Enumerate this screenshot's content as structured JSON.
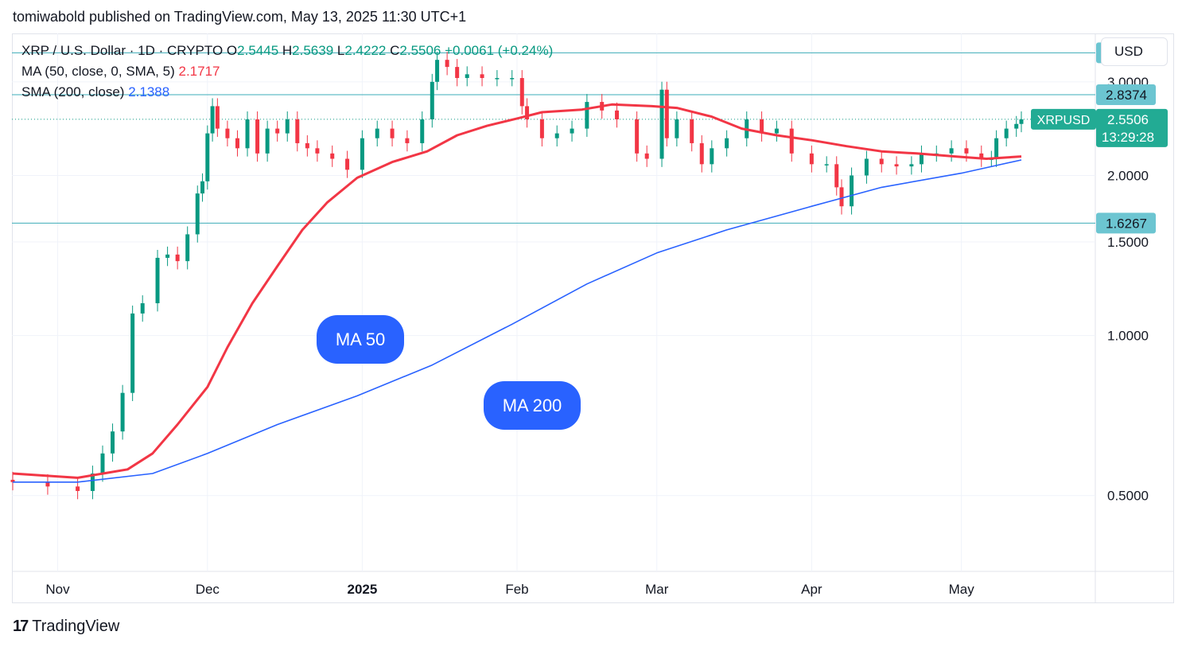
{
  "header": {
    "published": "tomiwabold published on TradingView.com, May 13, 2025 11:30 UTC+1"
  },
  "legend": {
    "symbol": "XRP / U.S. Dollar · 1D · CRYPTO",
    "open_label": "O",
    "open": "2.5445",
    "high_label": "H",
    "high": "2.5639",
    "low_label": "L",
    "low": "2.4222",
    "close_label": "C",
    "close": "2.5506",
    "change": "+0.0061 (+0.24%)",
    "ma50_label": "MA (50, close, 0, SMA, 5)",
    "ma50_value": "2.1717",
    "sma200_label": "SMA (200, close)",
    "sma200_value": "2.1388"
  },
  "currency_button": "USD",
  "annotations": {
    "ma50": "MA 50",
    "ma200": "MA 200"
  },
  "footer": {
    "logo": "17",
    "brand": "TradingView"
  },
  "colors": {
    "up": "#089981",
    "down": "#f23645",
    "ma50": "#f23645",
    "ma200": "#2962ff",
    "level": "#3dadb8"
  },
  "chart_data": {
    "type": "candlestick",
    "symbol": "XRPUSD",
    "interval": "1D",
    "y_scale": "log",
    "ylim": [
      0.36,
      3.7
    ],
    "y_ticks": [
      {
        "value": 0.5,
        "label": "0.5000"
      },
      {
        "value": 1.0,
        "label": "1.0000"
      },
      {
        "value": 1.5,
        "label": "1.5000"
      },
      {
        "value": 2.0,
        "label": "2.0000"
      },
      {
        "value": 3.0,
        "label": "3.0000"
      }
    ],
    "x_range": [
      "2024-10-23",
      "2025-05-13"
    ],
    "x_ticks": [
      {
        "date": "2024-11-01",
        "label": "Nov",
        "bold": false
      },
      {
        "date": "2024-12-01",
        "label": "Dec",
        "bold": false
      },
      {
        "date": "2025-01-01",
        "label": "2025",
        "bold": true
      },
      {
        "date": "2025-02-01",
        "label": "Feb",
        "bold": false
      },
      {
        "date": "2025-03-01",
        "label": "Mar",
        "bold": false
      },
      {
        "date": "2025-04-01",
        "label": "Apr",
        "bold": false
      },
      {
        "date": "2025-05-01",
        "label": "May",
        "bold": false
      }
    ],
    "horizontal_levels": [
      3.4017,
      2.8374,
      1.6267
    ],
    "level_labels": [
      "3.4017",
      "2.8374",
      "1.6267"
    ],
    "last_price": {
      "value": 2.5506,
      "label": "2.5506",
      "symbol_label": "XRPUSD",
      "countdown": "13:29:28"
    },
    "closes": [
      [
        "2024-10-23",
        0.53
      ],
      [
        "2024-10-30",
        0.52
      ],
      [
        "2024-11-05",
        0.51
      ],
      [
        "2024-11-08",
        0.55
      ],
      [
        "2024-11-10",
        0.6
      ],
      [
        "2024-11-12",
        0.66
      ],
      [
        "2024-11-14",
        0.78
      ],
      [
        "2024-11-16",
        1.1
      ],
      [
        "2024-11-18",
        1.15
      ],
      [
        "2024-11-21",
        1.4
      ],
      [
        "2024-11-23",
        1.42
      ],
      [
        "2024-11-25",
        1.38
      ],
      [
        "2024-11-27",
        1.55
      ],
      [
        "2024-11-29",
        1.85
      ],
      [
        "2024-11-30",
        1.95
      ],
      [
        "2024-12-01",
        2.4
      ],
      [
        "2024-12-02",
        2.7
      ],
      [
        "2024-12-03",
        2.45
      ],
      [
        "2024-12-05",
        2.35
      ],
      [
        "2024-12-07",
        2.25
      ],
      [
        "2024-12-09",
        2.55
      ],
      [
        "2024-12-11",
        2.2
      ],
      [
        "2024-12-13",
        2.45
      ],
      [
        "2024-12-15",
        2.4
      ],
      [
        "2024-12-17",
        2.55
      ],
      [
        "2024-12-19",
        2.3
      ],
      [
        "2024-12-21",
        2.25
      ],
      [
        "2024-12-23",
        2.2
      ],
      [
        "2024-12-26",
        2.15
      ],
      [
        "2024-12-29",
        2.05
      ],
      [
        "2025-01-01",
        2.35
      ],
      [
        "2025-01-04",
        2.45
      ],
      [
        "2025-01-07",
        2.35
      ],
      [
        "2025-01-10",
        2.3
      ],
      [
        "2025-01-13",
        2.55
      ],
      [
        "2025-01-15",
        3.0
      ],
      [
        "2025-01-16",
        3.3
      ],
      [
        "2025-01-18",
        3.2
      ],
      [
        "2025-01-20",
        3.05
      ],
      [
        "2025-01-22",
        3.1
      ],
      [
        "2025-01-25",
        3.05
      ],
      [
        "2025-01-28",
        3.05
      ],
      [
        "2025-01-31",
        3.05
      ],
      [
        "2025-02-02",
        2.7
      ],
      [
        "2025-02-03",
        2.55
      ],
      [
        "2025-02-06",
        2.35
      ],
      [
        "2025-02-09",
        2.4
      ],
      [
        "2025-02-12",
        2.45
      ],
      [
        "2025-02-15",
        2.75
      ],
      [
        "2025-02-18",
        2.65
      ],
      [
        "2025-02-21",
        2.55
      ],
      [
        "2025-02-25",
        2.2
      ],
      [
        "2025-02-27",
        2.15
      ],
      [
        "2025-03-02",
        2.9
      ],
      [
        "2025-03-03",
        2.35
      ],
      [
        "2025-03-05",
        2.55
      ],
      [
        "2025-03-08",
        2.3
      ],
      [
        "2025-03-10",
        2.1
      ],
      [
        "2025-03-12",
        2.25
      ],
      [
        "2025-03-15",
        2.35
      ],
      [
        "2025-03-19",
        2.55
      ],
      [
        "2025-03-22",
        2.4
      ],
      [
        "2025-03-25",
        2.45
      ],
      [
        "2025-03-28",
        2.2
      ],
      [
        "2025-04-01",
        2.1
      ],
      [
        "2025-04-04",
        2.1
      ],
      [
        "2025-04-06",
        1.9
      ],
      [
        "2025-04-07",
        1.75
      ],
      [
        "2025-04-09",
        2.0
      ],
      [
        "2025-04-12",
        2.15
      ],
      [
        "2025-04-15",
        2.1
      ],
      [
        "2025-04-18",
        2.08
      ],
      [
        "2025-04-21",
        2.1
      ],
      [
        "2025-04-23",
        2.2
      ],
      [
        "2025-04-26",
        2.2
      ],
      [
        "2025-04-29",
        2.25
      ],
      [
        "2025-05-02",
        2.2
      ],
      [
        "2025-05-05",
        2.15
      ],
      [
        "2025-05-07",
        2.15
      ],
      [
        "2025-05-08",
        2.35
      ],
      [
        "2025-05-10",
        2.45
      ],
      [
        "2025-05-12",
        2.5
      ],
      [
        "2025-05-13",
        2.5506
      ]
    ],
    "series": [
      {
        "name": "MA (50, close, 0, SMA, 5)",
        "color": "#f23645",
        "points": [
          [
            "2024-10-23",
            0.55
          ],
          [
            "2024-11-05",
            0.54
          ],
          [
            "2024-11-15",
            0.56
          ],
          [
            "2024-11-20",
            0.6
          ],
          [
            "2024-11-25",
            0.68
          ],
          [
            "2024-12-01",
            0.8
          ],
          [
            "2024-12-05",
            0.95
          ],
          [
            "2024-12-10",
            1.15
          ],
          [
            "2024-12-15",
            1.35
          ],
          [
            "2024-12-20",
            1.58
          ],
          [
            "2024-12-25",
            1.78
          ],
          [
            "2024-12-31",
            1.98
          ],
          [
            "2025-01-07",
            2.12
          ],
          [
            "2025-01-14",
            2.22
          ],
          [
            "2025-01-20",
            2.38
          ],
          [
            "2025-01-26",
            2.48
          ],
          [
            "2025-02-01",
            2.56
          ],
          [
            "2025-02-06",
            2.63
          ],
          [
            "2025-02-14",
            2.66
          ],
          [
            "2025-02-20",
            2.72
          ],
          [
            "2025-02-28",
            2.7
          ],
          [
            "2025-03-05",
            2.68
          ],
          [
            "2025-03-12",
            2.58
          ],
          [
            "2025-03-18",
            2.45
          ],
          [
            "2025-03-25",
            2.38
          ],
          [
            "2025-04-01",
            2.33
          ],
          [
            "2025-04-08",
            2.27
          ],
          [
            "2025-04-15",
            2.22
          ],
          [
            "2025-04-22",
            2.2
          ],
          [
            "2025-04-30",
            2.17
          ],
          [
            "2025-05-06",
            2.15
          ],
          [
            "2025-05-13",
            2.1717
          ]
        ]
      },
      {
        "name": "SMA (200, close)",
        "color": "#2962ff",
        "points": [
          [
            "2024-10-23",
            0.53
          ],
          [
            "2024-11-05",
            0.53
          ],
          [
            "2024-11-20",
            0.55
          ],
          [
            "2024-12-01",
            0.6
          ],
          [
            "2024-12-15",
            0.68
          ],
          [
            "2024-12-31",
            0.77
          ],
          [
            "2025-01-15",
            0.88
          ],
          [
            "2025-01-31",
            1.05
          ],
          [
            "2025-02-15",
            1.25
          ],
          [
            "2025-03-01",
            1.43
          ],
          [
            "2025-03-15",
            1.58
          ],
          [
            "2025-04-01",
            1.75
          ],
          [
            "2025-04-15",
            1.9
          ],
          [
            "2025-05-01",
            2.02
          ],
          [
            "2025-05-13",
            2.1388
          ]
        ]
      }
    ]
  }
}
